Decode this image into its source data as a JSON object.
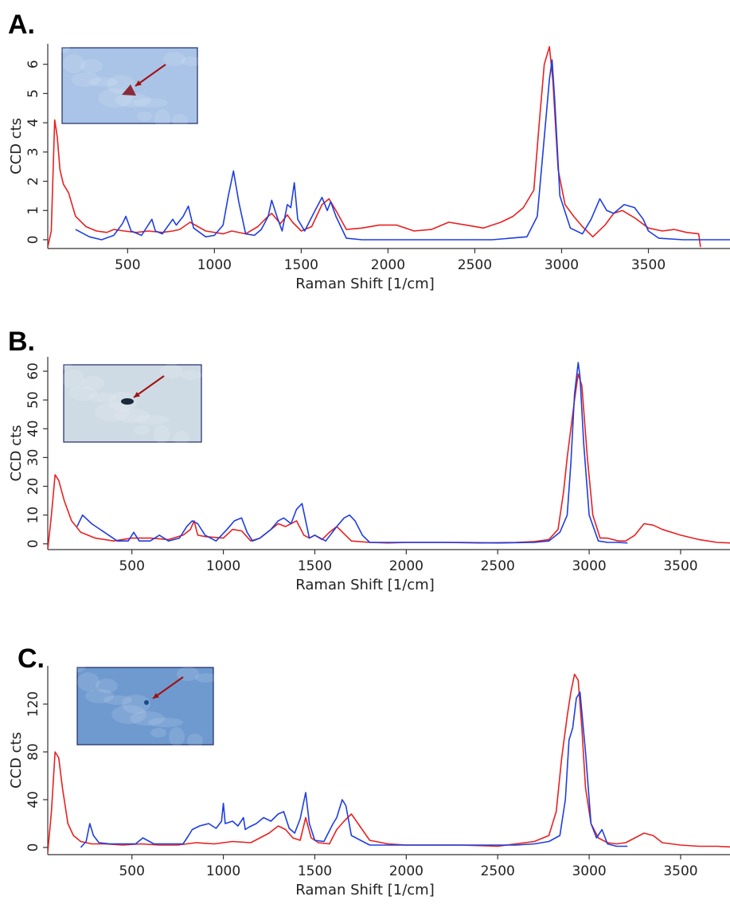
{
  "panel_letters": [
    "A.",
    "B.",
    "C."
  ],
  "chart_data": [
    {
      "type": "line",
      "panel": "A.",
      "xlabel": "Raman Shift [1/cm]",
      "ylabel": "CCD cts",
      "xlim": [
        40,
        3970
      ],
      "ylim": [
        -0.3,
        6.7
      ],
      "xticks": [
        500,
        1000,
        1500,
        2000,
        2500,
        3000,
        3500
      ],
      "yticks": [
        0,
        1,
        2,
        3,
        4,
        5,
        6
      ],
      "inset": {
        "background": "#a9c4e6",
        "particle": "#8a2a3a",
        "arrow": "#a01010"
      },
      "series": [
        {
          "color": "#e82020",
          "x": [
            40,
            60,
            80,
            95,
            110,
            130,
            160,
            200,
            260,
            320,
            380,
            420,
            480,
            550,
            620,
            700,
            760,
            800,
            860,
            950,
            1050,
            1100,
            1180,
            1250,
            1300,
            1330,
            1380,
            1420,
            1450,
            1500,
            1560,
            1620,
            1660,
            1700,
            1760,
            1850,
            1950,
            2050,
            2150,
            2250,
            2350,
            2450,
            2550,
            2650,
            2720,
            2780,
            2840,
            2870,
            2900,
            2930,
            2950,
            2980,
            3020,
            3070,
            3120,
            3180,
            3250,
            3300,
            3350,
            3420,
            3500,
            3580,
            3650,
            3720,
            3790,
            3800
          ],
          "y": [
            -0.25,
            0.3,
            4.1,
            3.5,
            2.4,
            1.9,
            1.6,
            0.8,
            0.45,
            0.3,
            0.25,
            0.35,
            0.3,
            0.25,
            0.3,
            0.25,
            0.3,
            0.35,
            0.6,
            0.3,
            0.2,
            0.3,
            0.2,
            0.45,
            0.75,
            0.9,
            0.55,
            0.85,
            0.6,
            0.3,
            0.45,
            1.2,
            1.4,
            1.0,
            0.35,
            0.4,
            0.5,
            0.5,
            0.3,
            0.35,
            0.6,
            0.5,
            0.4,
            0.6,
            0.8,
            1.1,
            1.7,
            3.9,
            6.0,
            6.6,
            5.4,
            2.4,
            1.2,
            0.8,
            0.45,
            0.1,
            0.5,
            0.9,
            1.0,
            0.75,
            0.4,
            0.3,
            0.35,
            0.25,
            0.2,
            -0.25
          ]
        },
        {
          "color": "#1e3ee0",
          "x": [
            200,
            280,
            350,
            420,
            470,
            490,
            520,
            580,
            640,
            660,
            700,
            760,
            780,
            820,
            850,
            880,
            950,
            1000,
            1050,
            1080,
            1110,
            1140,
            1180,
            1230,
            1270,
            1310,
            1330,
            1360,
            1390,
            1420,
            1440,
            1460,
            1480,
            1520,
            1580,
            1620,
            1650,
            1670,
            1700,
            1760,
            1850,
            2000,
            2200,
            2400,
            2600,
            2800,
            2860,
            2900,
            2930,
            2945,
            2960,
            2990,
            3050,
            3120,
            3170,
            3220,
            3260,
            3300,
            3360,
            3420,
            3470,
            3500,
            3560,
            3700,
            3850,
            3970
          ],
          "y": [
            0.35,
            0.1,
            0.0,
            0.15,
            0.55,
            0.8,
            0.3,
            0.15,
            0.7,
            0.3,
            0.2,
            0.7,
            0.5,
            0.8,
            1.15,
            0.4,
            0.1,
            0.15,
            0.5,
            1.5,
            2.35,
            1.3,
            0.2,
            0.15,
            0.35,
            0.8,
            1.35,
            0.8,
            0.3,
            1.2,
            1.1,
            1.95,
            0.7,
            0.3,
            1.0,
            1.45,
            1.0,
            1.3,
            0.8,
            0.05,
            0.0,
            0.0,
            0.0,
            0.0,
            0.0,
            0.1,
            0.8,
            3.5,
            5.5,
            6.15,
            4.8,
            1.5,
            0.4,
            0.2,
            0.7,
            1.4,
            1.0,
            0.9,
            1.2,
            1.1,
            0.7,
            0.3,
            0.05,
            0.0,
            0.0,
            0.0
          ]
        }
      ]
    },
    {
      "type": "line",
      "panel": "B.",
      "xlabel": "Raman Shift [1/cm]",
      "ylabel": "CCD cts",
      "xlim": [
        40,
        3770
      ],
      "ylim": [
        -2,
        65
      ],
      "xticks": [
        500,
        1000,
        1500,
        2000,
        2500,
        3000,
        3500
      ],
      "yticks": [
        0,
        10,
        20,
        30,
        40,
        50,
        60
      ],
      "inset": {
        "background": "#cfdbe4",
        "particle": "#1a2a3a",
        "arrow": "#a01010"
      },
      "series": [
        {
          "color": "#e82020",
          "x": [
            40,
            60,
            80,
            100,
            130,
            170,
            220,
            300,
            400,
            500,
            600,
            700,
            780,
            820,
            840,
            860,
            900,
            1000,
            1050,
            1100,
            1150,
            1200,
            1300,
            1340,
            1400,
            1440,
            1470,
            1500,
            1540,
            1580,
            1620,
            1700,
            1800,
            1900,
            2000,
            2200,
            2400,
            2600,
            2700,
            2780,
            2830,
            2860,
            2880,
            2900,
            2920,
            2940,
            2960,
            2990,
            3020,
            3060,
            3100,
            3160,
            3200,
            3250,
            3300,
            3350,
            3400,
            3500,
            3600,
            3700,
            3770
          ],
          "y": [
            -2,
            10,
            24,
            22,
            15,
            8,
            4,
            2,
            1,
            2,
            2,
            1.5,
            3,
            5,
            8,
            3,
            2.5,
            2,
            5,
            4.5,
            1,
            2,
            7,
            6,
            8,
            3,
            2,
            3,
            1.5,
            4,
            6,
            1,
            0.5,
            0.3,
            0.5,
            0.5,
            0.3,
            0.5,
            0.8,
            1.5,
            5,
            18,
            30,
            40,
            50,
            59,
            55,
            30,
            10,
            2,
            2,
            1,
            1,
            3,
            7,
            6.5,
            5,
            3,
            1.5,
            0.5,
            0.3
          ]
        },
        {
          "color": "#1e3ee0",
          "x": [
            200,
            230,
            280,
            350,
            420,
            480,
            510,
            540,
            600,
            650,
            700,
            760,
            800,
            830,
            860,
            900,
            960,
            1020,
            1060,
            1100,
            1130,
            1160,
            1200,
            1260,
            1300,
            1330,
            1370,
            1400,
            1430,
            1450,
            1470,
            1500,
            1560,
            1620,
            1660,
            1690,
            1720,
            1760,
            1800,
            1900,
            2100,
            2300,
            2500,
            2700,
            2780,
            2840,
            2880,
            2900,
            2920,
            2940,
            2950,
            2970,
            3000,
            3050,
            3100,
            3150,
            3210
          ],
          "y": [
            6,
            10,
            7,
            4,
            1,
            1,
            4,
            1,
            1,
            3,
            1,
            2,
            6,
            8,
            7,
            3,
            1,
            5,
            8,
            9,
            4,
            1,
            2,
            5,
            8,
            9,
            7,
            12,
            14,
            8,
            2,
            3,
            1,
            6,
            9,
            10,
            8,
            3,
            0.5,
            0.5,
            0.5,
            0.5,
            0.3,
            0.5,
            1,
            4,
            10,
            28,
            52,
            63,
            58,
            35,
            10,
            1,
            0.5,
            0.5,
            0.3
          ]
        }
      ]
    },
    {
      "type": "line",
      "panel": "C.",
      "xlabel": "Raman Shift [1/cm]",
      "ylabel": "CCD cts",
      "xlim": [
        40,
        3770
      ],
      "ylim": [
        -6,
        152
      ],
      "xticks": [
        500,
        1000,
        1500,
        2000,
        2500,
        3000,
        3500
      ],
      "yticks": [
        0,
        40,
        80,
        120
      ],
      "inset": {
        "background": "#6f9ad0",
        "particle": "#1a4a8a",
        "arrow": "#a01010"
      },
      "series": [
        {
          "color": "#e82020",
          "x": [
            40,
            60,
            80,
            100,
            120,
            150,
            180,
            220,
            280,
            350,
            450,
            550,
            650,
            750,
            850,
            950,
            1050,
            1150,
            1200,
            1250,
            1300,
            1340,
            1380,
            1420,
            1450,
            1480,
            1520,
            1580,
            1620,
            1660,
            1700,
            1800,
            1900,
            2000,
            2100,
            2300,
            2500,
            2700,
            2780,
            2820,
            2850,
            2880,
            2900,
            2920,
            2940,
            2960,
            2980,
            3010,
            3050,
            3100,
            3150,
            3200,
            3250,
            3300,
            3350,
            3400,
            3500,
            3600,
            3700,
            3770
          ],
          "y": [
            -4,
            30,
            80,
            75,
            50,
            20,
            10,
            5,
            3,
            3,
            2,
            3,
            2,
            2,
            4,
            3,
            5,
            4,
            8,
            12,
            18,
            15,
            8,
            6,
            25,
            8,
            4,
            3,
            15,
            22,
            28,
            6,
            3,
            2,
            2,
            2,
            1,
            5,
            10,
            30,
            75,
            110,
            130,
            145,
            140,
            100,
            50,
            20,
            8,
            4,
            3,
            4,
            8,
            12,
            10,
            4,
            2,
            1,
            1,
            0.5
          ]
        },
        {
          "color": "#1e3ee0",
          "x": [
            220,
            250,
            270,
            290,
            320,
            380,
            450,
            520,
            560,
            620,
            700,
            780,
            810,
            830,
            870,
            920,
            960,
            990,
            1000,
            1010,
            1050,
            1080,
            1110,
            1120,
            1140,
            1180,
            1220,
            1260,
            1300,
            1330,
            1360,
            1390,
            1420,
            1450,
            1470,
            1500,
            1550,
            1600,
            1620,
            1650,
            1670,
            1700,
            1800,
            2000,
            2200,
            2400,
            2600,
            2700,
            2780,
            2840,
            2870,
            2890,
            2910,
            2930,
            2950,
            2980,
            3010,
            3040,
            3070,
            3100,
            3150,
            3210
          ],
          "y": [
            0,
            5,
            20,
            10,
            4,
            3,
            3,
            3,
            8,
            3,
            3,
            3,
            10,
            15,
            18,
            20,
            16,
            22,
            37,
            20,
            22,
            18,
            25,
            15,
            17,
            20,
            25,
            22,
            28,
            30,
            16,
            12,
            24,
            46,
            20,
            6,
            5,
            20,
            25,
            40,
            35,
            10,
            2,
            2,
            2,
            2,
            2,
            3,
            5,
            10,
            40,
            90,
            100,
            125,
            130,
            80,
            20,
            8,
            15,
            3,
            1,
            1
          ]
        }
      ]
    }
  ]
}
